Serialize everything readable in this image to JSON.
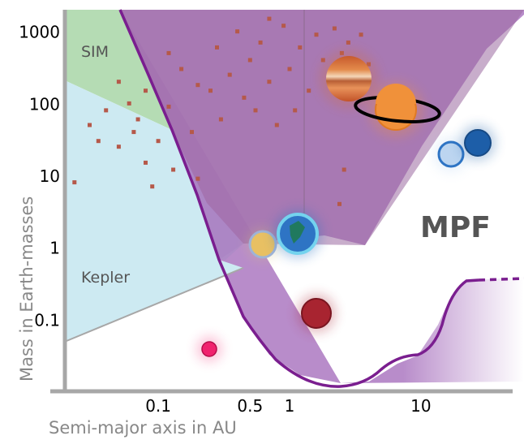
{
  "chart_data": {
    "type": "scatter",
    "title": "",
    "xlabel": "Semi-major axis in AU",
    "ylabel": "Mass in Earth-masses",
    "x_scale": "log",
    "y_scale": "log",
    "xlim": [
      0.02,
      50
    ],
    "ylim": [
      0.01,
      2000
    ],
    "grid": false,
    "x_ticks": [
      {
        "value": 0.1,
        "label": "0.1"
      },
      {
        "value": 0.5,
        "label": "0.5"
      },
      {
        "value": 1,
        "label": "1"
      },
      {
        "value": 10,
        "label": "10"
      }
    ],
    "y_ticks": [
      {
        "value": 0.1,
        "label": "0.1"
      },
      {
        "value": 1,
        "label": "1"
      },
      {
        "value": 10,
        "label": "10"
      },
      {
        "value": 100,
        "label": "100"
      },
      {
        "value": 1000,
        "label": "1000"
      }
    ],
    "regions": [
      {
        "name": "SIM",
        "label": "SIM",
        "color": "#b5dcb4"
      },
      {
        "name": "Kepler",
        "label": "Kepler",
        "color": "#cdeaf2"
      },
      {
        "name": "MPF",
        "label": "MPF",
        "color": "#b07fc4"
      }
    ],
    "exoplanets": {
      "color": "#b5594a",
      "points": [
        [
          0.023,
          8
        ],
        [
          0.03,
          50
        ],
        [
          0.035,
          30
        ],
        [
          0.04,
          80
        ],
        [
          0.05,
          25
        ],
        [
          0.05,
          200
        ],
        [
          0.06,
          100
        ],
        [
          0.065,
          40
        ],
        [
          0.07,
          60
        ],
        [
          0.08,
          15
        ],
        [
          0.08,
          150
        ],
        [
          0.09,
          7
        ],
        [
          0.1,
          30
        ],
        [
          0.12,
          90
        ],
        [
          0.13,
          12
        ],
        [
          0.15,
          300
        ],
        [
          0.18,
          40
        ],
        [
          0.2,
          9
        ],
        [
          0.25,
          150
        ],
        [
          0.28,
          600
        ],
        [
          0.3,
          60
        ],
        [
          0.35,
          250
        ],
        [
          0.4,
          1000
        ],
        [
          0.45,
          120
        ],
        [
          0.5,
          400
        ],
        [
          0.55,
          80
        ],
        [
          0.6,
          700
        ],
        [
          0.7,
          200
        ],
        [
          0.8,
          50
        ],
        [
          0.9,
          1200
        ],
        [
          1.0,
          300
        ],
        [
          1.2,
          600
        ],
        [
          1.4,
          150
        ],
        [
          1.6,
          900
        ],
        [
          1.8,
          400
        ],
        [
          2.0,
          250
        ],
        [
          2.2,
          1100
        ],
        [
          2.5,
          500
        ],
        [
          2.8,
          700
        ],
        [
          3.0,
          200
        ],
        [
          3.5,
          900
        ],
        [
          4.0,
          350
        ],
        [
          0.12,
          500
        ],
        [
          0.2,
          180
        ],
        [
          0.7,
          1500
        ],
        [
          1.1,
          80
        ],
        [
          2.6,
          12
        ],
        [
          2.4,
          4
        ]
      ]
    },
    "solar_system": [
      {
        "name": "Mercury",
        "a": 0.39,
        "m": 0.055,
        "color": "#f0226e"
      },
      {
        "name": "Venus",
        "a": 0.72,
        "m": 0.815,
        "color": "#e8c063"
      },
      {
        "name": "Earth",
        "a": 1.0,
        "m": 1.0,
        "color": "#2e74c4"
      },
      {
        "name": "Mars",
        "a": 1.52,
        "m": 0.107,
        "color": "#a82430"
      },
      {
        "name": "Jupiter",
        "a": 5.2,
        "m": 317.8,
        "color": "#d56f3b"
      },
      {
        "name": "Saturn",
        "a": 9.58,
        "m": 95.2,
        "color": "#f0913a"
      },
      {
        "name": "Uranus",
        "a": 19.2,
        "m": 14.5,
        "color": "#bcd5f0"
      },
      {
        "name": "Neptune",
        "a": 30.1,
        "m": 17.1,
        "color": "#1d5ea8"
      }
    ]
  }
}
